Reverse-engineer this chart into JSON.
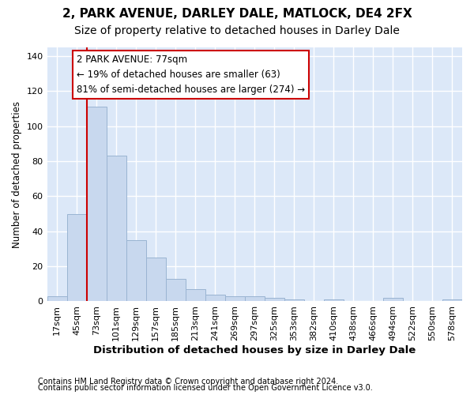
{
  "title1": "2, PARK AVENUE, DARLEY DALE, MATLOCK, DE4 2FX",
  "title2": "Size of property relative to detached houses in Darley Dale",
  "xlabel": "Distribution of detached houses by size in Darley Dale",
  "ylabel": "Number of detached properties",
  "bar_labels": [
    "17sqm",
    "45sqm",
    "73sqm",
    "101sqm",
    "129sqm",
    "157sqm",
    "185sqm",
    "213sqm",
    "241sqm",
    "269sqm",
    "297sqm",
    "325sqm",
    "353sqm",
    "382sqm",
    "410sqm",
    "438sqm",
    "466sqm",
    "494sqm",
    "522sqm",
    "550sqm",
    "578sqm"
  ],
  "bar_values": [
    3,
    50,
    111,
    83,
    35,
    25,
    13,
    7,
    4,
    3,
    3,
    2,
    1,
    0,
    1,
    0,
    0,
    2,
    0,
    0,
    1
  ],
  "bar_color": "#c8d8ee",
  "bar_edgecolor": "#9ab4d2",
  "ylim": [
    0,
    145
  ],
  "yticks": [
    0,
    20,
    40,
    60,
    80,
    100,
    120,
    140
  ],
  "vline_index": 2,
  "vline_color": "#cc0000",
  "annotation_line1": "2 PARK AVENUE: 77sqm",
  "annotation_line2": "← 19% of detached houses are smaller (63)",
  "annotation_line3": "81% of semi-detached houses are larger (274) →",
  "annotation_box_edgecolor": "#cc0000",
  "footnote1": "Contains HM Land Registry data © Crown copyright and database right 2024.",
  "footnote2": "Contains public sector information licensed under the Open Government Licence v3.0.",
  "fig_bg_color": "#ffffff",
  "plot_bg_color": "#dce8f8",
  "grid_color": "#ffffff",
  "title1_fontsize": 11,
  "title2_fontsize": 10,
  "xlabel_fontsize": 9.5,
  "ylabel_fontsize": 8.5,
  "tick_fontsize": 8,
  "annotation_fontsize": 8.5,
  "footnote_fontsize": 7
}
